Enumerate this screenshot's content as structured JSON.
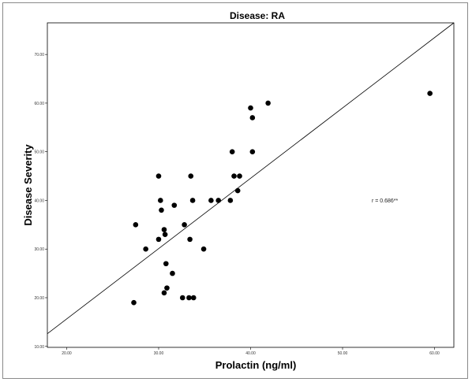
{
  "chart_data": {
    "type": "scatter",
    "title": "Disease: RA",
    "xlabel": "Prolactin (ng/ml)",
    "ylabel": "Disease Severity",
    "xlim": [
      17.9,
      62.1
    ],
    "ylim": [
      9.8,
      76.5
    ],
    "xticks": [
      20,
      30,
      40,
      50,
      60
    ],
    "xtick_labels": [
      "20.00",
      "30.00",
      "40.00",
      "50.00",
      "60.00"
    ],
    "yticks": [
      10,
      20,
      30,
      40,
      50,
      60,
      70
    ],
    "ytick_labels": [
      "10.00",
      "20.00",
      "30.00",
      "40.00",
      "50.00",
      "60.00",
      "70.00"
    ],
    "grid": false,
    "points": [
      {
        "x": 27.3,
        "y": 19
      },
      {
        "x": 27.5,
        "y": 35
      },
      {
        "x": 28.6,
        "y": 30
      },
      {
        "x": 30.0,
        "y": 45
      },
      {
        "x": 30.0,
        "y": 32
      },
      {
        "x": 30.2,
        "y": 40
      },
      {
        "x": 30.3,
        "y": 38
      },
      {
        "x": 30.6,
        "y": 21
      },
      {
        "x": 30.6,
        "y": 34
      },
      {
        "x": 30.7,
        "y": 33
      },
      {
        "x": 30.8,
        "y": 27
      },
      {
        "x": 30.9,
        "y": 22
      },
      {
        "x": 31.5,
        "y": 25
      },
      {
        "x": 31.7,
        "y": 39
      },
      {
        "x": 32.6,
        "y": 20
      },
      {
        "x": 32.8,
        "y": 35
      },
      {
        "x": 33.3,
        "y": 20
      },
      {
        "x": 33.4,
        "y": 32
      },
      {
        "x": 33.5,
        "y": 45
      },
      {
        "x": 33.7,
        "y": 40
      },
      {
        "x": 33.8,
        "y": 20
      },
      {
        "x": 34.9,
        "y": 30
      },
      {
        "x": 35.7,
        "y": 40
      },
      {
        "x": 36.5,
        "y": 40
      },
      {
        "x": 37.8,
        "y": 40
      },
      {
        "x": 38.0,
        "y": 50
      },
      {
        "x": 38.2,
        "y": 45
      },
      {
        "x": 38.6,
        "y": 42
      },
      {
        "x": 38.8,
        "y": 45
      },
      {
        "x": 40.0,
        "y": 59
      },
      {
        "x": 40.2,
        "y": 57
      },
      {
        "x": 40.2,
        "y": 50
      },
      {
        "x": 41.9,
        "y": 60
      },
      {
        "x": 59.5,
        "y": 62
      }
    ],
    "fit_line": {
      "x": [
        17.9,
        62.1
      ],
      "y": [
        12.6,
        76.5
      ]
    },
    "annotations": [
      {
        "text": "r = 0.686**",
        "x": 54.6,
        "y": 39.6
      }
    ]
  }
}
